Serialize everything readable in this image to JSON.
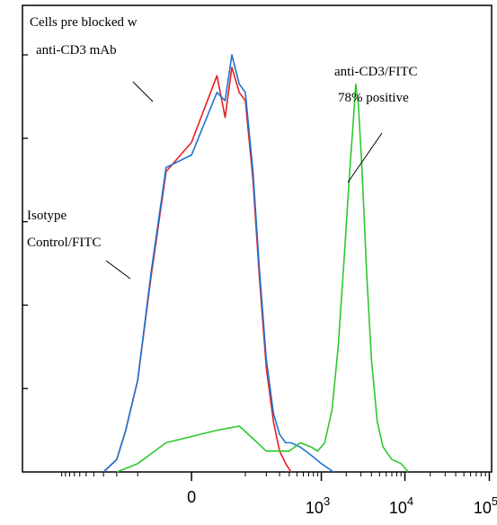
{
  "chart_data": {
    "type": "line",
    "title": "",
    "xlabel": "",
    "ylabel": "",
    "x_scale": "biexponential",
    "x_ticks": [
      {
        "base": "0",
        "exp": ""
      },
      {
        "base": "10",
        "exp": "3"
      },
      {
        "base": "10",
        "exp": "4"
      },
      {
        "base": "10",
        "exp": "5"
      }
    ],
    "x_tick_values": [
      0,
      1000,
      10000,
      100000
    ],
    "ylim": [
      0,
      100
    ],
    "grid": false,
    "legend": "none",
    "series": [
      {
        "color": "#e52020",
        "points": [
          [
            -300,
            0
          ],
          [
            -200,
            3
          ],
          [
            -150,
            10
          ],
          [
            -100,
            22
          ],
          [
            -60,
            47
          ],
          [
            -30,
            72
          ],
          [
            0,
            79
          ],
          [
            30,
            95
          ],
          [
            45,
            85
          ],
          [
            60,
            97
          ],
          [
            80,
            91
          ],
          [
            100,
            89
          ],
          [
            130,
            70
          ],
          [
            160,
            47
          ],
          [
            200,
            25
          ],
          [
            250,
            12
          ],
          [
            300,
            5
          ],
          [
            360,
            2
          ],
          [
            420,
            0
          ]
        ]
      },
      {
        "color": "#1e73d2",
        "points": [
          [
            -300,
            0
          ],
          [
            -200,
            3
          ],
          [
            -150,
            10
          ],
          [
            -100,
            22
          ],
          [
            -60,
            48
          ],
          [
            -30,
            73
          ],
          [
            0,
            76
          ],
          [
            30,
            91
          ],
          [
            45,
            89
          ],
          [
            60,
            100
          ],
          [
            80,
            93
          ],
          [
            100,
            91
          ],
          [
            130,
            72
          ],
          [
            160,
            49
          ],
          [
            200,
            27
          ],
          [
            250,
            14
          ],
          [
            300,
            9
          ],
          [
            360,
            7
          ],
          [
            420,
            7
          ],
          [
            550,
            6
          ],
          [
            750,
            4
          ],
          [
            1000,
            2
          ],
          [
            1400,
            0
          ]
        ]
      },
      {
        "color": "#2ec82e",
        "points": [
          [
            -200,
            0
          ],
          [
            -100,
            2
          ],
          [
            -30,
            7
          ],
          [
            30,
            10
          ],
          [
            80,
            11
          ],
          [
            130,
            8
          ],
          [
            200,
            5
          ],
          [
            300,
            5
          ],
          [
            400,
            5
          ],
          [
            550,
            7
          ],
          [
            750,
            6
          ],
          [
            900,
            5
          ],
          [
            1100,
            7
          ],
          [
            1350,
            15
          ],
          [
            1600,
            30
          ],
          [
            1900,
            52
          ],
          [
            2200,
            72
          ],
          [
            2450,
            85
          ],
          [
            2600,
            93
          ],
          [
            2800,
            88
          ],
          [
            3100,
            72
          ],
          [
            3500,
            48
          ],
          [
            4000,
            27
          ],
          [
            4700,
            12
          ],
          [
            5500,
            6
          ],
          [
            7000,
            3
          ],
          [
            9000,
            2
          ],
          [
            11000,
            0
          ]
        ]
      }
    ],
    "annotations": [
      {
        "lines": [
          "Cells pre blocked w",
          "anti-CD3 mAb"
        ],
        "target_series": 1
      },
      {
        "lines": [
          "anti-CD3/FITC",
          "78% positive"
        ],
        "target_series": 2
      },
      {
        "lines": [
          "Isotype",
          "Control/FITC"
        ],
        "target_series": 0
      }
    ]
  }
}
